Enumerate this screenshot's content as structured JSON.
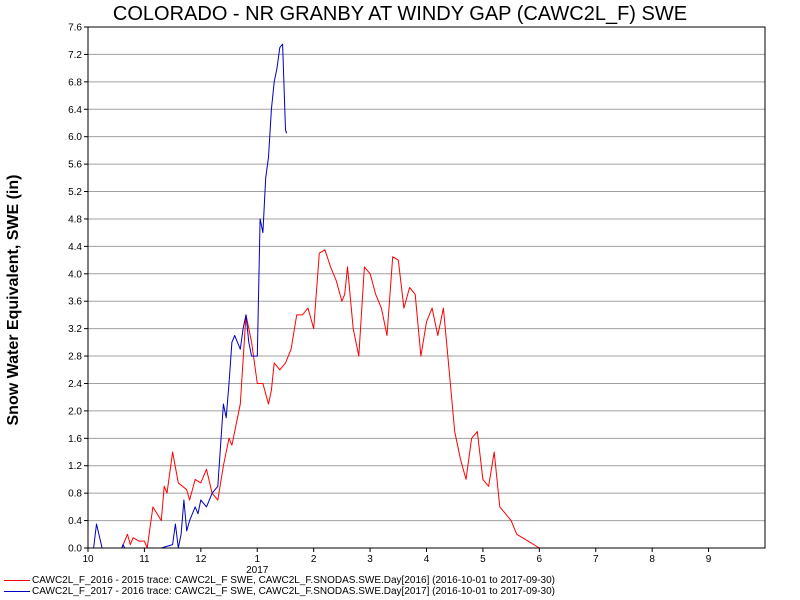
{
  "chart_data": {
    "type": "line",
    "title": "COLORADO - NR GRANBY AT WINDY GAP (CAWC2L_F) SWE",
    "ylabel": "Snow Water Equivalent, SWE (in)",
    "xlabel": "",
    "year_label": "2017",
    "ylim": [
      0,
      7.6
    ],
    "yticks": [
      "0.0",
      "0.4",
      "0.8",
      "1.2",
      "1.6",
      "2.0",
      "2.4",
      "2.8",
      "3.2",
      "3.6",
      "4.0",
      "4.4",
      "4.8",
      "5.2",
      "5.6",
      "6.0",
      "6.4",
      "6.8",
      "7.2",
      "7.6"
    ],
    "x_ticks": [
      "10",
      "11",
      "12",
      "1",
      "2",
      "3",
      "4",
      "5",
      "6",
      "7",
      "8",
      "9"
    ],
    "x_unit": "month (Oct 2016 - Sep 2017)",
    "xlim": [
      10,
      22
    ],
    "grid": true,
    "legend_position": "bottom",
    "series": [
      {
        "name": "CAWC2L_F_2016 - 2015 trace: CAWC2L_F SWE, CAWC2L_F.SNODAS.SWE.Day[2016] (2016-10-01 to 2017-09-30)",
        "color": "#ff0000",
        "x": [
          10.0,
          10.6,
          10.7,
          10.75,
          10.8,
          10.9,
          11.0,
          11.05,
          11.15,
          11.3,
          11.35,
          11.4,
          11.5,
          11.6,
          11.75,
          11.8,
          11.9,
          12.0,
          12.1,
          12.2,
          12.3,
          12.4,
          12.5,
          12.55,
          12.6,
          12.7,
          12.8,
          12.9,
          13.0,
          13.1,
          13.2,
          13.25,
          13.3,
          13.4,
          13.5,
          13.6,
          13.7,
          13.8,
          13.9,
          14.0,
          14.1,
          14.2,
          14.3,
          14.4,
          14.5,
          14.55,
          14.6,
          14.7,
          14.8,
          14.9,
          15.0,
          15.1,
          15.2,
          15.3,
          15.4,
          15.5,
          15.6,
          15.7,
          15.8,
          15.9,
          16.0,
          16.1,
          16.2,
          16.3,
          16.4,
          16.5,
          16.6,
          16.7,
          16.8,
          16.9,
          17.0,
          17.1,
          17.2,
          17.3,
          17.4,
          17.5,
          17.6,
          17.8,
          18.0,
          18.5
        ],
        "values": [
          0.0,
          0.0,
          0.2,
          0.05,
          0.15,
          0.1,
          0.1,
          0.0,
          0.6,
          0.4,
          0.9,
          0.8,
          1.4,
          0.95,
          0.85,
          0.7,
          1.0,
          0.95,
          1.15,
          0.8,
          0.7,
          1.2,
          1.6,
          1.5,
          1.7,
          2.1,
          3.4,
          3.0,
          2.4,
          2.4,
          2.1,
          2.3,
          2.7,
          2.6,
          2.7,
          2.9,
          3.4,
          3.4,
          3.5,
          3.2,
          4.3,
          4.35,
          4.1,
          3.9,
          3.6,
          3.7,
          4.1,
          3.2,
          2.8,
          4.1,
          4.0,
          3.7,
          3.5,
          3.1,
          4.25,
          4.2,
          3.5,
          3.8,
          3.7,
          2.8,
          3.3,
          3.5,
          3.1,
          3.5,
          2.6,
          1.7,
          1.3,
          1.0,
          1.6,
          1.7,
          1.0,
          0.9,
          1.4,
          0.6,
          0.5,
          0.4,
          0.2,
          0.1,
          0.0,
          0.0
        ]
      },
      {
        "name": "CAWC2L_F_2017 - 2016 trace: CAWC2L_F SWE, CAWC2L_F.SNODAS.SWE.Day[2017] (2016-10-01 to 2017-09-30)",
        "color": "#0000c0",
        "x": [
          10.0,
          10.1,
          10.15,
          10.25,
          10.3,
          10.6,
          10.62,
          10.65,
          10.8,
          11.2,
          11.3,
          11.5,
          11.55,
          11.6,
          11.65,
          11.7,
          11.75,
          11.8,
          11.9,
          11.95,
          12.0,
          12.1,
          12.2,
          12.3,
          12.35,
          12.4,
          12.45,
          12.5,
          12.55,
          12.6,
          12.65,
          12.7,
          12.75,
          12.8,
          12.85,
          12.9,
          13.0,
          13.05,
          13.1,
          13.15,
          13.2,
          13.25,
          13.3,
          13.35,
          13.4,
          13.45,
          13.5,
          13.52
        ],
        "values": [
          0.0,
          0.0,
          0.35,
          0.0,
          0.0,
          0.0,
          0.05,
          0.0,
          0.0,
          0.0,
          0.0,
          0.05,
          0.35,
          0.0,
          0.2,
          0.7,
          0.25,
          0.4,
          0.6,
          0.5,
          0.7,
          0.6,
          0.8,
          0.9,
          1.5,
          2.1,
          1.9,
          2.4,
          3.0,
          3.1,
          3.0,
          2.9,
          3.2,
          3.4,
          3.0,
          2.8,
          2.8,
          4.8,
          4.6,
          5.4,
          5.7,
          6.4,
          6.8,
          7.0,
          7.3,
          7.35,
          6.1,
          6.05
        ]
      }
    ]
  },
  "legend": {
    "entry_1": "CAWC2L_F_2016 - 2015 trace: CAWC2L_F SWE, CAWC2L_F.SNODAS.SWE.Day[2016] (2016-10-01 to 2017-09-30)",
    "entry_2": "CAWC2L_F_2017 - 2016 trace: CAWC2L_F SWE, CAWC2L_F.SNODAS.SWE.Day[2017] (2016-10-01 to 2017-09-30)"
  }
}
